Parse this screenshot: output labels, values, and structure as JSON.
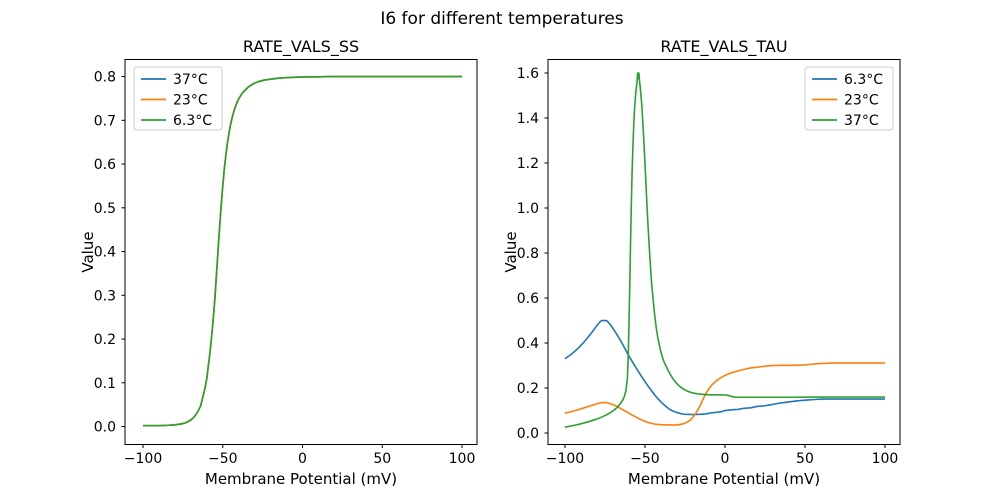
{
  "figure": {
    "suptitle": "I6 for different temperatures",
    "background": "#ffffff",
    "palette": {
      "blue": "#1f77b4",
      "orange": "#ff7f0e",
      "green": "#2ca02c"
    }
  },
  "chart_data": [
    {
      "type": "line",
      "title": "RATE_VALS_SS",
      "xlabel": "Membrane Potential (mV)",
      "ylabel": "Value",
      "xlim": [
        -111.3,
        109.4
      ],
      "ylim": [
        -0.041,
        0.839
      ],
      "x_ticks": [
        -100,
        -50,
        0,
        50,
        100
      ],
      "x_tick_labels": [
        "−100",
        "−50",
        "0",
        "50",
        "100"
      ],
      "y_ticks": [
        0.0,
        0.1,
        0.2,
        0.3,
        0.4,
        0.5,
        0.6,
        0.7,
        0.8
      ],
      "y_tick_labels": [
        "0.0",
        "0.1",
        "0.2",
        "0.3",
        "0.4",
        "0.5",
        "0.6",
        "0.7",
        "0.8"
      ],
      "grid": false,
      "legend": {
        "position": "upper left",
        "entries": [
          {
            "label": "37°C",
            "color": "#1f77b4"
          },
          {
            "label": "23°C",
            "color": "#ff7f0e"
          },
          {
            "label": "6.3°C",
            "color": "#2ca02c"
          }
        ]
      },
      "note": "Steady-state sigmoid rising from 0 to 0.8; the three temperature curves overlap exactly, green (6.3°C, plotted last) is visible on top",
      "shared_points": [
        [
          -100,
          0.002
        ],
        [
          -90,
          0.002
        ],
        [
          -84,
          0.003
        ],
        [
          -80,
          0.004
        ],
        [
          -76,
          0.006
        ],
        [
          -73,
          0.009
        ],
        [
          -70,
          0.015
        ],
        [
          -68,
          0.022
        ],
        [
          -66,
          0.032
        ],
        [
          -64,
          0.046
        ],
        [
          -63,
          0.06
        ],
        [
          -62,
          0.075
        ],
        [
          -61,
          0.09
        ],
        [
          -60,
          0.11
        ],
        [
          -59,
          0.14
        ],
        [
          -58,
          0.17
        ],
        [
          -57,
          0.205
        ],
        [
          -56,
          0.245
        ],
        [
          -55,
          0.29
        ],
        [
          -54,
          0.345
        ],
        [
          -53,
          0.4
        ],
        [
          -52,
          0.455
        ],
        [
          -51,
          0.505
        ],
        [
          -50,
          0.55
        ],
        [
          -49,
          0.59
        ],
        [
          -48,
          0.622
        ],
        [
          -47,
          0.65
        ],
        [
          -46,
          0.673
        ],
        [
          -45,
          0.692
        ],
        [
          -44,
          0.708
        ],
        [
          -43,
          0.721
        ],
        [
          -42,
          0.732
        ],
        [
          -41,
          0.741
        ],
        [
          -40,
          0.749
        ],
        [
          -38,
          0.761
        ],
        [
          -36,
          0.769
        ],
        [
          -34,
          0.776
        ],
        [
          -32,
          0.781
        ],
        [
          -30,
          0.785
        ],
        [
          -28,
          0.788
        ],
        [
          -26,
          0.79
        ],
        [
          -24,
          0.792
        ],
        [
          -22,
          0.793
        ],
        [
          -20,
          0.794
        ],
        [
          -16,
          0.796
        ],
        [
          -12,
          0.797
        ],
        [
          -8,
          0.798
        ],
        [
          -4,
          0.7985
        ],
        [
          0,
          0.799
        ],
        [
          10,
          0.7995
        ],
        [
          20,
          0.8
        ],
        [
          50,
          0.8
        ],
        [
          100,
          0.8
        ]
      ],
      "series": [
        {
          "name": "37°C",
          "color": "#1f77b4",
          "points_ref": "shared_points"
        },
        {
          "name": "23°C",
          "color": "#ff7f0e",
          "points_ref": "shared_points"
        },
        {
          "name": "6.3°C",
          "color": "#2ca02c",
          "points_ref": "shared_points"
        }
      ]
    },
    {
      "type": "line",
      "title": "RATE_VALS_TAU",
      "xlabel": "Membrane Potential (mV)",
      "ylabel": "Value",
      "xlim": [
        -110.6,
        109.4
      ],
      "ylim": [
        -0.051,
        1.66
      ],
      "x_ticks": [
        -100,
        -50,
        0,
        50,
        100
      ],
      "x_tick_labels": [
        "−100",
        "−50",
        "0",
        "50",
        "100"
      ],
      "y_ticks": [
        0.0,
        0.2,
        0.4,
        0.6,
        0.8,
        1.0,
        1.2,
        1.4,
        1.6
      ],
      "y_tick_labels": [
        "0.0",
        "0.2",
        "0.4",
        "0.6",
        "0.8",
        "1.0",
        "1.2",
        "1.4",
        "1.6"
      ],
      "grid": false,
      "legend": {
        "position": "upper right",
        "entries": [
          {
            "label": "6.3°C",
            "color": "#1f77b4"
          },
          {
            "label": "23°C",
            "color": "#ff7f0e"
          },
          {
            "label": "37°C",
            "color": "#2ca02c"
          }
        ]
      },
      "note": "Blue (6.3°C) peaks 0.50 near −76 mV; orange (23°C) small hump 0.136 near −76 mV, min 0.036, rises to 0.31; green (37°C) sharp spike to 1.60 near −54 mV, settles at 0.16",
      "series": [
        {
          "name": "6.3°C",
          "color": "#1f77b4",
          "points": [
            [
              -100,
              0.33
            ],
            [
              -96,
              0.35
            ],
            [
              -92,
              0.375
            ],
            [
              -88,
              0.405
            ],
            [
              -84,
              0.44
            ],
            [
              -82,
              0.458
            ],
            [
              -80,
              0.478
            ],
            [
              -78,
              0.495
            ],
            [
              -77,
              0.5
            ],
            [
              -74,
              0.5
            ],
            [
              -72,
              0.485
            ],
            [
              -70,
              0.465
            ],
            [
              -68,
              0.443
            ],
            [
              -66,
              0.42
            ],
            [
              -64,
              0.395
            ],
            [
              -62,
              0.368
            ],
            [
              -60,
              0.342
            ],
            [
              -58,
              0.318
            ],
            [
              -56,
              0.295
            ],
            [
              -54,
              0.272
            ],
            [
              -52,
              0.25
            ],
            [
              -50,
              0.229
            ],
            [
              -48,
              0.208
            ],
            [
              -46,
              0.189
            ],
            [
              -44,
              0.17
            ],
            [
              -42,
              0.153
            ],
            [
              -40,
              0.138
            ],
            [
              -38,
              0.125
            ],
            [
              -36,
              0.113
            ],
            [
              -34,
              0.103
            ],
            [
              -32,
              0.096
            ],
            [
              -30,
              0.091
            ],
            [
              -28,
              0.087
            ],
            [
              -26,
              0.084
            ],
            [
              -24,
              0.083
            ],
            [
              -20,
              0.082
            ],
            [
              -16,
              0.083
            ],
            [
              -12,
              0.085
            ],
            [
              -8,
              0.09
            ],
            [
              -4,
              0.093
            ],
            [
              -2,
              0.095
            ],
            [
              0,
              0.1
            ],
            [
              4,
              0.103
            ],
            [
              8,
              0.105
            ],
            [
              12,
              0.11
            ],
            [
              16,
              0.112
            ],
            [
              20,
              0.118
            ],
            [
              24,
              0.12
            ],
            [
              28,
              0.125
            ],
            [
              32,
              0.13
            ],
            [
              36,
              0.135
            ],
            [
              40,
              0.138
            ],
            [
              44,
              0.142
            ],
            [
              48,
              0.145
            ],
            [
              52,
              0.147
            ],
            [
              56,
              0.149
            ],
            [
              60,
              0.151
            ],
            [
              70,
              0.151
            ],
            [
              85,
              0.151
            ],
            [
              100,
              0.151
            ]
          ]
        },
        {
          "name": "23°C",
          "color": "#ff7f0e",
          "points": [
            [
              -100,
              0.088
            ],
            [
              -96,
              0.095
            ],
            [
              -92,
              0.103
            ],
            [
              -88,
              0.112
            ],
            [
              -84,
              0.121
            ],
            [
              -81,
              0.128
            ],
            [
              -78,
              0.134
            ],
            [
              -76,
              0.136
            ],
            [
              -74,
              0.135
            ],
            [
              -72,
              0.131
            ],
            [
              -70,
              0.126
            ],
            [
              -68,
              0.12
            ],
            [
              -66,
              0.112
            ],
            [
              -64,
              0.104
            ],
            [
              -62,
              0.096
            ],
            [
              -60,
              0.088
            ],
            [
              -58,
              0.08
            ],
            [
              -56,
              0.072
            ],
            [
              -54,
              0.065
            ],
            [
              -52,
              0.058
            ],
            [
              -50,
              0.052
            ],
            [
              -48,
              0.047
            ],
            [
              -46,
              0.043
            ],
            [
              -44,
              0.04
            ],
            [
              -42,
              0.038
            ],
            [
              -40,
              0.037
            ],
            [
              -36,
              0.036
            ],
            [
              -30,
              0.036
            ],
            [
              -28,
              0.038
            ],
            [
              -26,
              0.041
            ],
            [
              -24,
              0.047
            ],
            [
              -22,
              0.056
            ],
            [
              -20,
              0.07
            ],
            [
              -18,
              0.09
            ],
            [
              -16,
              0.115
            ],
            [
              -14,
              0.145
            ],
            [
              -12,
              0.175
            ],
            [
              -10,
              0.198
            ],
            [
              -8,
              0.215
            ],
            [
              -6,
              0.228
            ],
            [
              -4,
              0.239
            ],
            [
              -2,
              0.248
            ],
            [
              0,
              0.256
            ],
            [
              3,
              0.265
            ],
            [
              6,
              0.272
            ],
            [
              9,
              0.278
            ],
            [
              12,
              0.283
            ],
            [
              15,
              0.288
            ],
            [
              18,
              0.291
            ],
            [
              22,
              0.294
            ],
            [
              26,
              0.298
            ],
            [
              30,
              0.3
            ],
            [
              36,
              0.301
            ],
            [
              42,
              0.301
            ],
            [
              48,
              0.302
            ],
            [
              52,
              0.304
            ],
            [
              56,
              0.307
            ],
            [
              60,
              0.309
            ],
            [
              66,
              0.311
            ],
            [
              80,
              0.311
            ],
            [
              100,
              0.311
            ]
          ]
        },
        {
          "name": "37°C",
          "color": "#2ca02c",
          "points": [
            [
              -100,
              0.026
            ],
            [
              -95,
              0.033
            ],
            [
              -90,
              0.041
            ],
            [
              -85,
              0.051
            ],
            [
              -80,
              0.062
            ],
            [
              -77,
              0.071
            ],
            [
              -74,
              0.081
            ],
            [
              -72,
              0.089
            ],
            [
              -70,
              0.098
            ],
            [
              -68,
              0.11
            ],
            [
              -66,
              0.125
            ],
            [
              -64,
              0.145
            ],
            [
              -63,
              0.16
            ],
            [
              -62,
              0.185
            ],
            [
              -61,
              0.24
            ],
            [
              -60.5,
              0.33
            ],
            [
              -60,
              0.48
            ],
            [
              -59.5,
              0.65
            ],
            [
              -59,
              0.85
            ],
            [
              -58.5,
              1.02
            ],
            [
              -58,
              1.17
            ],
            [
              -57.5,
              1.28
            ],
            [
              -57,
              1.37
            ],
            [
              -56.5,
              1.44
            ],
            [
              -56,
              1.49
            ],
            [
              -55.5,
              1.53
            ],
            [
              -55,
              1.555
            ],
            [
              -54.6,
              1.6
            ],
            [
              -54.2,
              1.575
            ],
            [
              -53.8,
              1.6
            ],
            [
              -53.4,
              1.565
            ],
            [
              -53,
              1.54
            ],
            [
              -52,
              1.46
            ],
            [
              -51,
              1.34
            ],
            [
              -50,
              1.2
            ],
            [
              -49,
              1.05
            ],
            [
              -48,
              0.91
            ],
            [
              -47,
              0.79
            ],
            [
              -46,
              0.68
            ],
            [
              -45,
              0.6
            ],
            [
              -44,
              0.53
            ],
            [
              -43,
              0.47
            ],
            [
              -42,
              0.425
            ],
            [
              -41,
              0.39
            ],
            [
              -40,
              0.36
            ],
            [
              -39,
              0.335
            ],
            [
              -38,
              0.315
            ],
            [
              -36,
              0.285
            ],
            [
              -34,
              0.258
            ],
            [
              -32,
              0.236
            ],
            [
              -30,
              0.219
            ],
            [
              -28,
              0.206
            ],
            [
              -26,
              0.196
            ],
            [
              -24,
              0.188
            ],
            [
              -22,
              0.182
            ],
            [
              -20,
              0.178
            ],
            [
              -17,
              0.174
            ],
            [
              -14,
              0.172
            ],
            [
              -10,
              0.17
            ],
            [
              -5,
              0.17
            ],
            [
              0,
              0.169
            ],
            [
              2,
              0.167
            ],
            [
              3,
              0.165
            ],
            [
              4,
              0.163
            ],
            [
              5,
              0.161
            ],
            [
              6,
              0.16
            ],
            [
              8,
              0.159
            ],
            [
              15,
              0.159
            ],
            [
              25,
              0.159
            ],
            [
              40,
              0.159
            ],
            [
              55,
              0.16
            ],
            [
              70,
              0.16
            ],
            [
              100,
              0.16
            ]
          ]
        }
      ]
    }
  ]
}
